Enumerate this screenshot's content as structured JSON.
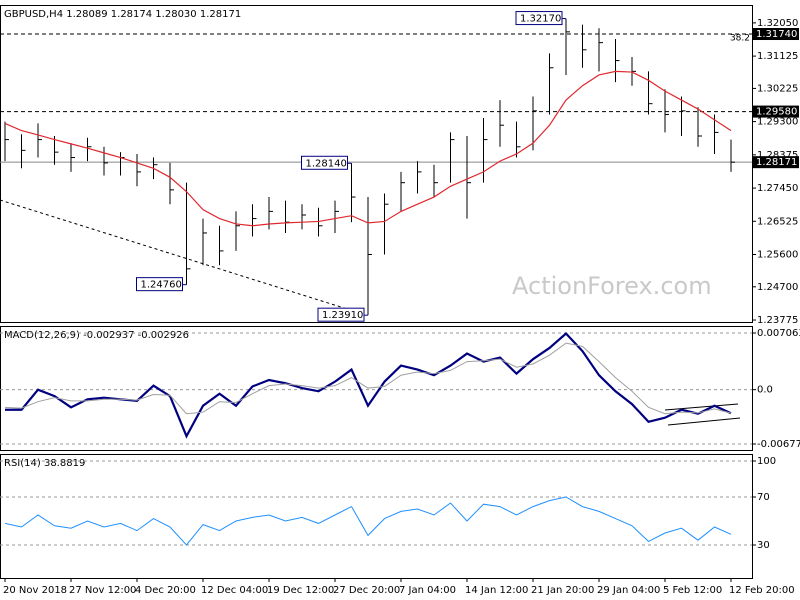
{
  "chart_data": [
    {
      "type": "ohlc",
      "title": "GBPUSD,H4  1.28089 1.28174 1.28030 1.28171",
      "watermark": "ActionForex.com",
      "color": "#000000",
      "high": [
        1.293,
        1.2895,
        1.2925,
        1.289,
        1.287,
        1.2885,
        1.286,
        1.2845,
        1.284,
        1.283,
        1.2815,
        1.276,
        1.266,
        1.264,
        1.268,
        1.27,
        1.272,
        1.271,
        1.27,
        1.269,
        1.271,
        1.2814,
        1.272,
        1.273,
        1.279,
        1.282,
        1.281,
        1.29,
        1.289,
        1.294,
        1.299,
        1.293,
        1.3,
        1.312,
        1.3217,
        1.32,
        1.319,
        1.316,
        1.311,
        1.307,
        1.302,
        1.3,
        1.297,
        1.295,
        1.288
      ],
      "low": [
        1.282,
        1.28,
        1.283,
        1.281,
        1.279,
        1.282,
        1.278,
        1.278,
        1.275,
        1.277,
        1.27,
        1.2476,
        1.253,
        1.253,
        1.257,
        1.261,
        1.263,
        1.262,
        1.263,
        1.261,
        1.262,
        1.265,
        1.2391,
        1.256,
        1.268,
        1.273,
        1.272,
        1.276,
        1.266,
        1.276,
        1.286,
        1.283,
        1.285,
        1.295,
        1.306,
        1.308,
        1.307,
        1.304,
        1.303,
        1.295,
        1.29,
        1.289,
        1.286,
        1.284,
        1.279
      ],
      "close": [
        1.288,
        1.285,
        1.288,
        1.2845,
        1.283,
        1.286,
        1.2815,
        1.283,
        1.279,
        1.281,
        1.274,
        1.252,
        1.262,
        1.257,
        1.264,
        1.266,
        1.268,
        1.265,
        1.267,
        1.264,
        1.268,
        1.272,
        1.256,
        1.27,
        1.276,
        1.279,
        1.276,
        1.288,
        1.276,
        1.288,
        1.292,
        1.286,
        1.296,
        1.308,
        1.318,
        1.313,
        1.315,
        1.31,
        1.307,
        1.298,
        1.295,
        1.296,
        1.289,
        1.29,
        1.28171
      ],
      "ma": {
        "color": "#e0282e",
        "values": [
          1.2925,
          1.2905,
          1.2893,
          1.288,
          1.2868,
          1.2856,
          1.2843,
          1.283,
          1.2815,
          1.28,
          1.2775,
          1.2735,
          1.2685,
          1.266,
          1.2645,
          1.264,
          1.2645,
          1.2648,
          1.265,
          1.2652,
          1.266,
          1.2668,
          1.2648,
          1.2652,
          1.268,
          1.27,
          1.272,
          1.275,
          1.277,
          1.279,
          1.282,
          1.284,
          1.287,
          1.292,
          1.299,
          1.303,
          1.306,
          1.307,
          1.3068,
          1.3045,
          1.3015,
          1.299,
          1.2965,
          1.2935,
          1.2905
        ]
      },
      "ylim": [
        1.2372,
        1.3252
      ],
      "yticks": [
        {
          "value": 1.3205,
          "label": "1.32050"
        },
        1.31125,
        1.30225,
        {
          "value": 1.293,
          "label": "1.29300"
        },
        1.28375,
        {
          "value": 1.2745,
          "label": "1.27450"
        },
        1.26525,
        {
          "value": 1.256,
          "label": "1.25600"
        },
        {
          "value": 1.247,
          "label": "1.24700"
        },
        1.23775
      ],
      "grid": false,
      "levels": [
        {
          "value": 1.3174,
          "label": "1.31740",
          "style": "dashed",
          "note": "38.2"
        },
        {
          "value": 1.2958,
          "label": "1.29580",
          "style": "dashed"
        },
        {
          "value": 1.28171,
          "label": "1.28171",
          "style": "solid"
        }
      ],
      "annotations": [
        {
          "value": 1.3217,
          "label": "1.32170"
        },
        {
          "value": 1.2814,
          "label": "1.28140"
        },
        {
          "value": 1.2476,
          "label": "1.24760"
        },
        {
          "value": 1.2391,
          "label": "1.23910"
        }
      ]
    },
    {
      "type": "line",
      "title": "MACD(12,26,9) -0.002937 -0.002926",
      "series": [
        {
          "color": "#000080",
          "values": [
            -0.0025,
            -0.0025,
            0.0,
            -0.0008,
            -0.0022,
            -0.0012,
            -0.001,
            -0.0012,
            -0.0014,
            0.0005,
            -0.0008,
            -0.0058,
            -0.002,
            -0.0005,
            -0.002,
            0.0004,
            0.0012,
            0.0008,
            0.0002,
            -0.0002,
            0.001,
            0.0025,
            -0.002,
            0.001,
            0.003,
            0.0025,
            0.0018,
            0.003,
            0.0045,
            0.0035,
            0.004,
            0.002,
            0.0038,
            0.0052,
            0.007,
            0.0048,
            0.0018,
            -0.0002,
            -0.0018,
            -0.004,
            -0.0035,
            -0.0025,
            -0.003,
            -0.002,
            -0.002937
          ]
        },
        {
          "color": "#a0a0a0",
          "values": [
            -0.0022,
            -0.0023,
            -0.0015,
            -0.001,
            -0.0014,
            -0.0014,
            -0.0012,
            -0.0012,
            -0.0013,
            -0.0006,
            -0.0007,
            -0.003,
            -0.0028,
            -0.0015,
            -0.0016,
            -0.0005,
            0.0005,
            0.0007,
            0.0005,
            0.0002,
            0.0005,
            0.0015,
            0.0002,
            0.0004,
            0.0018,
            0.0022,
            0.002,
            0.0024,
            0.0035,
            0.0036,
            0.0038,
            0.0028,
            0.0032,
            0.0043,
            0.0058,
            0.0054,
            0.0035,
            0.0015,
            -0.0002,
            -0.0022,
            -0.003,
            -0.0028,
            -0.0029,
            -0.0024,
            -0.002926
          ]
        }
      ],
      "ylim": [
        -0.00752,
        0.00781
      ],
      "yticks": [
        0.007063,
        {
          "value": 0,
          "label": "0.0"
        },
        -0.006774
      ],
      "grid": true
    },
    {
      "type": "line",
      "title": "RSI(14) 38.8819",
      "series": [
        {
          "color": "#1e90ff",
          "values": [
            48,
            45,
            55,
            46,
            44,
            50,
            45,
            48,
            42,
            52,
            45,
            30,
            47,
            42,
            50,
            53,
            55,
            50,
            53,
            48,
            55,
            62,
            38,
            52,
            58,
            60,
            55,
            65,
            50,
            64,
            62,
            55,
            62,
            67,
            70,
            62,
            58,
            52,
            46,
            33,
            40,
            44,
            34,
            45,
            38.8819
          ]
        }
      ],
      "ylim": [
        2.5,
        105
      ],
      "yticks": [
        100,
        70,
        30
      ],
      "grid": true,
      "categories": [
        "20 Nov 2018",
        null,
        null,
        null,
        "27 Nov 12:00",
        null,
        null,
        null,
        "4 Dec 20:00",
        null,
        null,
        null,
        "12 Dec 04:00",
        null,
        null,
        null,
        "19 Dec 12:00",
        null,
        null,
        null,
        "27 Dec 20:00",
        null,
        null,
        null,
        "7 Jan 04:00",
        null,
        null,
        null,
        "14 Jan 12:00",
        null,
        null,
        null,
        "21 Jan 20:00",
        null,
        null,
        null,
        "29 Jan 04:00",
        null,
        null,
        null,
        "5 Feb 12:00",
        null,
        null,
        null,
        "12 Feb 20:00"
      ]
    }
  ]
}
